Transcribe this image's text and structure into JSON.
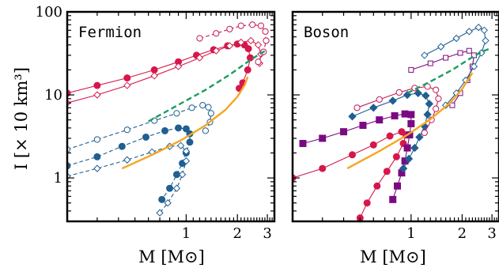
{
  "figure": {
    "ylabel": "I [× 10 km³]",
    "xlabel": "M [M⊙]"
  },
  "chart_data": [
    {
      "type": "line",
      "title": "Fermion",
      "xscale": "log",
      "yscale": "log",
      "xlim": [
        0.2,
        3.3
      ],
      "ylim": [
        0.3,
        100
      ],
      "xticklabels": [
        "1",
        "2",
        "3"
      ],
      "yticklabels": [
        "1",
        "10",
        "100"
      ],
      "series": [
        {
          "color": "#d6174b",
          "marker": "circle-filled",
          "linestyle": "solid",
          "points": [
            [
              0.2,
              10.5
            ],
            [
              0.3,
              13
            ],
            [
              0.45,
              16
            ],
            [
              0.65,
              20
            ],
            [
              0.9,
              25
            ],
            [
              1.15,
              30
            ],
            [
              1.45,
              35
            ],
            [
              1.75,
              39
            ],
            [
              2.0,
              41
            ],
            [
              2.2,
              40
            ],
            [
              2.32,
              36
            ],
            [
              2.38,
              28
            ],
            [
              2.3,
              20
            ],
            [
              2.15,
              14
            ],
            [
              2.05,
              12
            ]
          ]
        },
        {
          "color": "#d6174b",
          "marker": "diamond-open",
          "linestyle": "solid",
          "points": [
            [
              0.2,
              8
            ],
            [
              0.3,
              10
            ],
            [
              0.45,
              13
            ],
            [
              0.65,
              17
            ],
            [
              0.9,
              22
            ],
            [
              1.2,
              28
            ],
            [
              1.5,
              34
            ],
            [
              1.8,
              39
            ],
            [
              2.1,
              43
            ],
            [
              2.4,
              45
            ],
            [
              2.65,
              40
            ],
            [
              2.75,
              31
            ],
            [
              2.7,
              24
            ]
          ]
        },
        {
          "color": "#c2185b",
          "marker": "circle-open",
          "linestyle": "dashed",
          "points": [
            [
              1.2,
              48
            ],
            [
              1.5,
              55
            ],
            [
              1.8,
              62
            ],
            [
              2.1,
              68
            ],
            [
              2.45,
              70
            ],
            [
              2.75,
              68
            ],
            [
              2.92,
              58
            ],
            [
              2.95,
              45
            ],
            [
              2.85,
              33
            ],
            [
              2.65,
              25
            ]
          ]
        },
        {
          "color": "#1f5f91",
          "marker": "circle-filled",
          "linestyle": "dashed",
          "points": [
            [
              0.2,
              1.4
            ],
            [
              0.3,
              1.8
            ],
            [
              0.42,
              2.4
            ],
            [
              0.58,
              3.1
            ],
            [
              0.75,
              3.7
            ],
            [
              0.9,
              4.0
            ],
            [
              1.0,
              3.9
            ],
            [
              1.05,
              3.4
            ],
            [
              1.05,
              2.7
            ],
            [
              1.0,
              2.0
            ],
            [
              0.95,
              1.5
            ],
            [
              0.88,
              1.1
            ],
            [
              0.8,
              0.75
            ],
            [
              0.72,
              0.55
            ]
          ]
        },
        {
          "color": "#1f5f91",
          "marker": "circle-open",
          "linestyle": "dashed",
          "points": [
            [
              0.2,
              2.2
            ],
            [
              0.3,
              2.9
            ],
            [
              0.45,
              3.8
            ],
            [
              0.65,
              4.9
            ],
            [
              0.88,
              6.0
            ],
            [
              1.08,
              7.0
            ],
            [
              1.25,
              7.5
            ],
            [
              1.35,
              7.1
            ],
            [
              1.4,
              6.0
            ],
            [
              1.38,
              4.7
            ],
            [
              1.3,
              3.7
            ]
          ]
        },
        {
          "color": "#1f5f91",
          "marker": "diamond-open",
          "linestyle": "dashed",
          "points": [
            [
              0.2,
              1.05
            ],
            [
              0.3,
              1.3
            ],
            [
              0.45,
              1.65
            ],
            [
              0.63,
              2.05
            ],
            [
              0.8,
              2.4
            ],
            [
              0.93,
              2.45
            ],
            [
              1.0,
              2.1
            ],
            [
              1.0,
              1.6
            ],
            [
              0.95,
              1.1
            ],
            [
              0.88,
              0.75
            ],
            [
              0.78,
              0.5
            ],
            [
              0.7,
              0.38
            ]
          ]
        },
        {
          "color": "#f5a623",
          "marker": "none",
          "linestyle": "solid",
          "points": [
            [
              0.42,
              1.3
            ],
            [
              0.65,
              1.95
            ],
            [
              0.95,
              2.9
            ],
            [
              1.3,
              4.3
            ],
            [
              1.7,
              6.6
            ],
            [
              2.0,
              9.5
            ],
            [
              2.2,
              13
            ],
            [
              2.3,
              16.5
            ]
          ]
        },
        {
          "color": "#1a9c5c",
          "marker": "none",
          "linestyle": "dashed",
          "points": [
            [
              0.6,
              4.8
            ],
            [
              0.9,
              7.6
            ],
            [
              1.3,
              11.5
            ],
            [
              1.8,
              17.5
            ],
            [
              2.3,
              25
            ],
            [
              2.7,
              31
            ],
            [
              3.0,
              35
            ]
          ]
        }
      ]
    },
    {
      "type": "line",
      "title": "Boson",
      "xscale": "log",
      "yscale": "log",
      "xlim": [
        0.2,
        3.3
      ],
      "ylim": [
        0.3,
        100
      ],
      "xticklabels": [
        "1",
        "2",
        "3"
      ],
      "yticklabels": [
        "1",
        "10",
        "100"
      ],
      "series": [
        {
          "color": "#d6174b",
          "marker": "circle-filled",
          "linestyle": "solid",
          "points": [
            [
              0.2,
              1.0
            ],
            [
              0.3,
              1.3
            ],
            [
              0.45,
              1.9
            ],
            [
              0.6,
              2.5
            ],
            [
              0.75,
              3.2
            ],
            [
              0.88,
              3.6
            ],
            [
              0.93,
              3.3
            ],
            [
              0.9,
              2.6
            ],
            [
              0.82,
              1.8
            ],
            [
              0.72,
              1.2
            ],
            [
              0.63,
              0.8
            ],
            [
              0.55,
              0.5
            ],
            [
              0.5,
              0.33
            ]
          ]
        },
        {
          "color": "#7b0a82",
          "marker": "square-filled",
          "linestyle": "solid",
          "points": [
            [
              0.23,
              2.6
            ],
            [
              0.3,
              3.0
            ],
            [
              0.4,
              3.6
            ],
            [
              0.52,
              4.3
            ],
            [
              0.65,
              5.0
            ],
            [
              0.8,
              5.6
            ],
            [
              0.92,
              5.9
            ],
            [
              1.0,
              5.8
            ],
            [
              1.0,
              4.5
            ],
            [
              0.98,
              3.3
            ],
            [
              0.95,
              2.3
            ],
            [
              0.92,
              1.6
            ],
            [
              0.88,
              1.15
            ],
            [
              0.83,
              0.8
            ],
            [
              0.78,
              0.55
            ]
          ]
        },
        {
          "color": "#1f5f91",
          "marker": "diamond-filled",
          "linestyle": "solid",
          "points": [
            [
              0.45,
              5.5
            ],
            [
              0.6,
              7.0
            ],
            [
              0.78,
              8.5
            ],
            [
              0.95,
              10.0
            ],
            [
              1.1,
              10.5
            ],
            [
              1.22,
              9.8
            ],
            [
              1.28,
              7.8
            ],
            [
              1.25,
              5.8
            ],
            [
              1.2,
              4.2
            ],
            [
              1.12,
              3.1
            ],
            [
              1.05,
              2.3
            ],
            [
              0.97,
              1.7
            ],
            [
              0.9,
              1.3
            ]
          ]
        },
        {
          "color": "#c2185b",
          "marker": "circle-open",
          "linestyle": "solid",
          "points": [
            [
              0.48,
              7.0
            ],
            [
              0.65,
              8.8
            ],
            [
              0.85,
              10.7
            ],
            [
              1.05,
              12.1
            ],
            [
              1.25,
              12.6
            ],
            [
              1.4,
              11.5
            ],
            [
              1.45,
              9.0
            ],
            [
              1.4,
              6.8
            ],
            [
              1.32,
              5.0
            ],
            [
              1.2,
              3.5
            ]
          ]
        },
        {
          "color": "#7b0a82",
          "marker": "square-open",
          "linestyle": "solid",
          "points": [
            [
              1.0,
              20
            ],
            [
              1.3,
              24
            ],
            [
              1.6,
              28
            ],
            [
              1.95,
              32
            ],
            [
              2.2,
              34
            ],
            [
              2.35,
              30
            ],
            [
              2.3,
              22
            ],
            [
              2.15,
              15
            ],
            [
              1.95,
              10.5
            ],
            [
              1.75,
              7.5
            ]
          ]
        },
        {
          "color": "#1f5f91",
          "marker": "diamond-open",
          "linestyle": "solid",
          "points": [
            [
              1.2,
              30
            ],
            [
              1.5,
              38
            ],
            [
              1.85,
              48
            ],
            [
              2.2,
              58
            ],
            [
              2.5,
              65
            ],
            [
              2.7,
              60
            ],
            [
              2.75,
              45
            ],
            [
              2.6,
              32
            ],
            [
              2.35,
              22
            ],
            [
              2.1,
              15
            ],
            [
              1.85,
              10.5
            ],
            [
              1.6,
              7.5
            ]
          ]
        },
        {
          "color": "#f5a623",
          "marker": "none",
          "linestyle": "solid",
          "points": [
            [
              0.42,
              1.3
            ],
            [
              0.65,
              2.1
            ],
            [
              0.95,
              3.3
            ],
            [
              1.3,
              5.1
            ],
            [
              1.7,
              8.0
            ],
            [
              2.0,
              11.8
            ],
            [
              2.2,
              16
            ],
            [
              2.3,
              18.5
            ]
          ]
        },
        {
          "color": "#1a9c5c",
          "marker": "none",
          "linestyle": "dashed",
          "points": [
            [
              0.95,
              10.5
            ],
            [
              1.3,
              14.5
            ],
            [
              1.75,
              20
            ],
            [
              2.2,
              27
            ],
            [
              2.6,
              33
            ],
            [
              2.9,
              36
            ]
          ]
        }
      ]
    }
  ]
}
